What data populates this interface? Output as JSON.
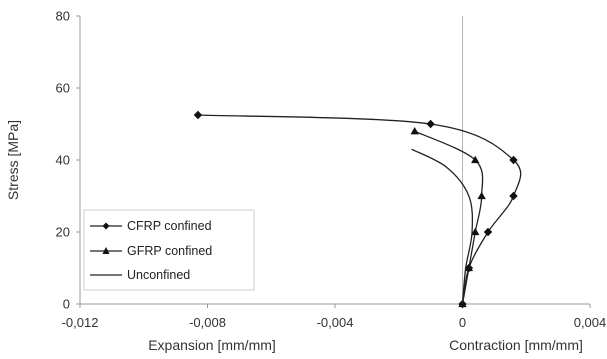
{
  "chart_data": {
    "type": "line",
    "title": "",
    "xlabel_left": "Expansion [mm/mm]",
    "xlabel_right": "Contraction [mm/mm]",
    "ylabel": "Stress [MPa]",
    "xlim": [
      -0.012,
      0.004
    ],
    "ylim": [
      0,
      80
    ],
    "xticks": [
      -0.012,
      -0.008,
      -0.004,
      0,
      0.004
    ],
    "xtick_labels": [
      "-0,012",
      "-0,008",
      "-0,004",
      "0",
      "0,004"
    ],
    "yticks": [
      0,
      20,
      40,
      60,
      80
    ],
    "ytick_labels": [
      "0",
      "20",
      "40",
      "60",
      "80"
    ],
    "grid": false,
    "zero_line": true,
    "legend_position": "bottom-left",
    "series": [
      {
        "name": "CFRP confined",
        "marker": "diamond",
        "x": [
          0,
          0.0002,
          0.0008,
          0.0016,
          0.0016,
          -0.001,
          -0.0083
        ],
        "y": [
          0,
          10,
          20,
          30,
          40,
          50,
          52.5
        ]
      },
      {
        "name": "GFRP confined",
        "marker": "triangle",
        "x": [
          0,
          0.0002,
          0.0004,
          0.0006,
          0.0004,
          -0.0015
        ],
        "y": [
          0,
          10,
          20,
          30,
          40,
          48
        ]
      },
      {
        "name": "Unconfined",
        "marker": "none",
        "x": [
          0,
          0.0001,
          0.0003,
          0.0002,
          -0.0005,
          -0.0016
        ],
        "y": [
          0,
          10,
          20,
          30,
          38,
          43
        ]
      }
    ]
  }
}
